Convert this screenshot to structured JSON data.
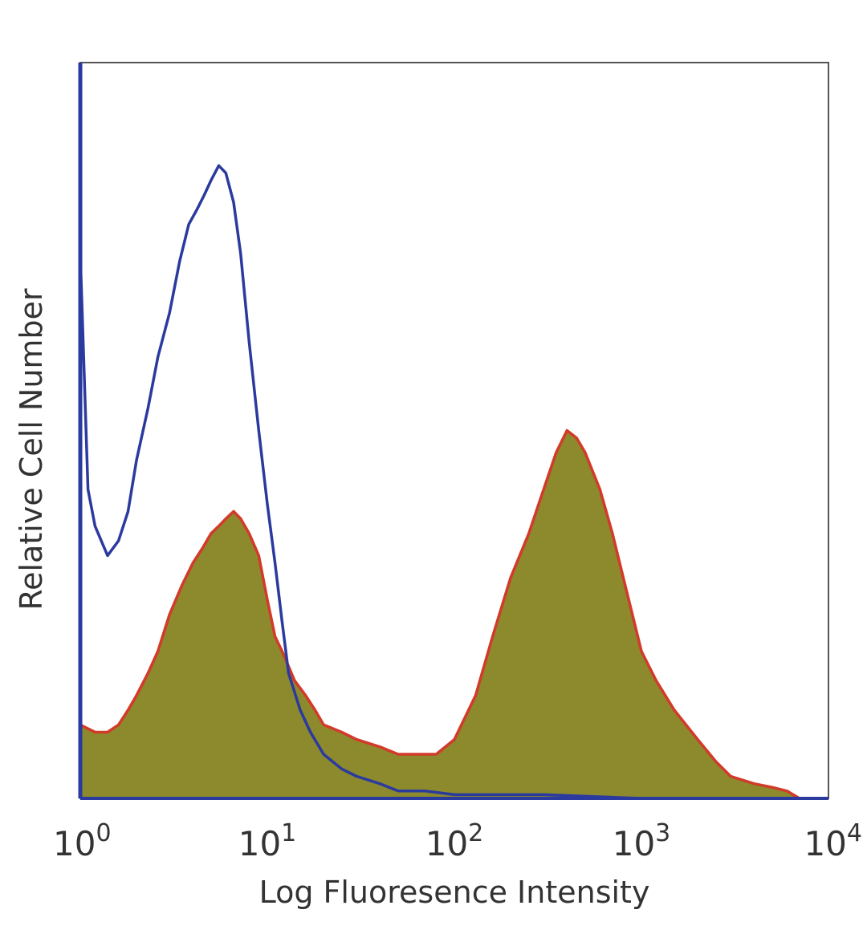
{
  "chart_data": {
    "type": "area",
    "title": "",
    "xlabel": "Log Fluoresence Intensity",
    "ylabel": "Relative Cell Number",
    "x_scale": "log",
    "xlim": [
      1,
      10000
    ],
    "ylim": [
      0,
      100
    ],
    "grid": false,
    "x_ticks": [
      {
        "base": "10",
        "exp": "0"
      },
      {
        "base": "10",
        "exp": "1"
      },
      {
        "base": "10",
        "exp": "2"
      },
      {
        "base": "10",
        "exp": "3"
      },
      {
        "base": "10",
        "exp": "4"
      }
    ],
    "series": [
      {
        "name": "",
        "style": "line",
        "color": "#2b3a9e",
        "x": [
          1.0,
          1.1,
          1.2,
          1.4,
          1.6,
          1.8,
          2.0,
          2.3,
          2.6,
          3.0,
          3.4,
          3.8,
          4.2,
          4.6,
          5.0,
          5.5,
          6.0,
          6.6,
          7.2,
          8.0,
          9.0,
          10,
          11,
          12,
          13,
          15,
          17,
          20,
          25,
          30,
          40,
          50,
          70,
          100,
          200,
          300,
          1000,
          3000,
          6000,
          10000
        ],
        "y": [
          74,
          42,
          37,
          33,
          35,
          39,
          46,
          53,
          60,
          66,
          73,
          78,
          80,
          82,
          84,
          86,
          85,
          81,
          74,
          62,
          50,
          40,
          32,
          24,
          17,
          12,
          9,
          6,
          4,
          3,
          2,
          1,
          1,
          0.5,
          0.5,
          0.5,
          0,
          0,
          0,
          0
        ]
      },
      {
        "name": "",
        "style": "filled",
        "color": "#d23a2a",
        "fill": "#8c8a2c",
        "x": [
          1.0,
          1.2,
          1.4,
          1.6,
          1.8,
          2.0,
          2.3,
          2.6,
          3.0,
          3.5,
          4.0,
          4.5,
          5.0,
          5.5,
          6.0,
          6.6,
          7.2,
          8.0,
          9.0,
          10,
          11,
          12,
          14,
          16,
          18,
          20,
          25,
          30,
          40,
          50,
          60,
          80,
          100,
          130,
          160,
          200,
          250,
          300,
          350,
          400,
          450,
          500,
          600,
          700,
          800,
          1000,
          1200,
          1500,
          2000,
          2500,
          3000,
          4000,
          5000,
          6000,
          7000,
          10000
        ],
        "y": [
          10,
          9,
          9,
          10,
          12,
          14,
          17,
          20,
          25,
          29,
          32,
          34,
          36,
          37,
          38,
          39,
          38,
          36,
          33,
          27,
          22,
          20,
          16,
          14,
          12,
          10,
          9,
          8,
          7,
          6,
          6,
          6,
          8,
          14,
          22,
          30,
          36,
          42,
          47,
          50,
          49,
          47,
          42,
          36,
          30,
          20,
          16,
          12,
          8,
          5,
          3,
          2,
          1.5,
          1,
          0,
          0
        ]
      }
    ]
  }
}
